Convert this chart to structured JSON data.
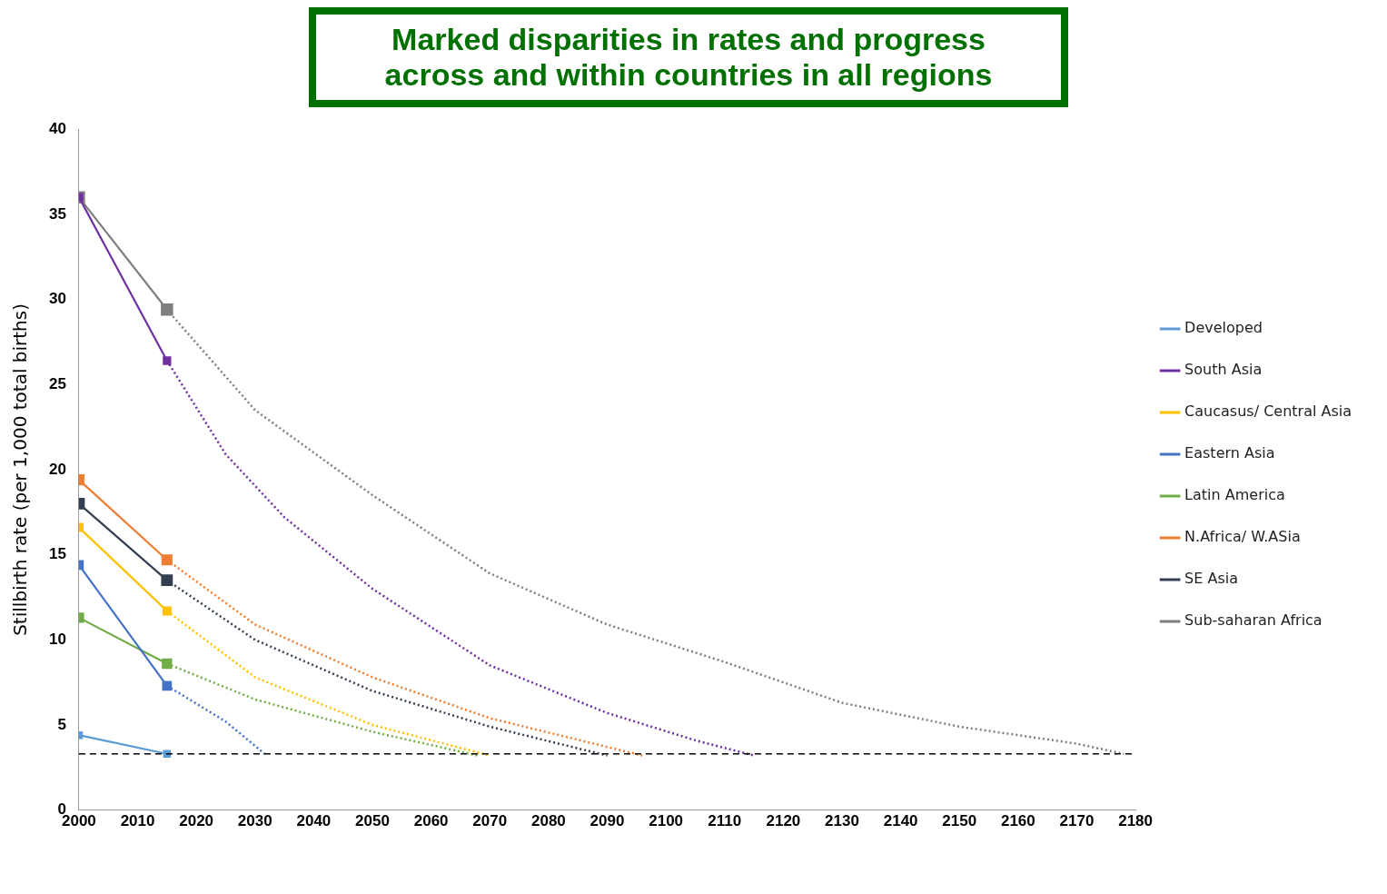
{
  "chart_data": {
    "type": "line",
    "title": "Marked disparities in rates and progress across and within countries in all regions",
    "ylabel": "Stillbirth rate (per 1,000 total births)",
    "xlim": [
      2000,
      2180
    ],
    "xticks": [
      2000,
      2010,
      2020,
      2030,
      2040,
      2050,
      2060,
      2070,
      2080,
      2090,
      2100,
      2110,
      2120,
      2130,
      2140,
      2150,
      2160,
      2170,
      2180
    ],
    "ylim": [
      0,
      40
    ],
    "yticks": [
      0,
      5,
      10,
      15,
      20,
      25,
      30,
      35,
      40
    ],
    "grid": false,
    "legend": "right",
    "marker": "square",
    "line_style": "solid",
    "series": [
      {
        "name": "Developed",
        "color": "#5b9bd5",
        "x": [
          2000,
          2015
        ],
        "values": [
          4.4,
          3.3
        ]
      },
      {
        "name": "South Asia",
        "color": "#7030a0",
        "x": [
          2000,
          2015
        ],
        "values": [
          36,
          26.4
        ]
      },
      {
        "name": "Caucasus/ Central Asia",
        "color": "#ffc000",
        "x": [
          2000,
          2015
        ],
        "values": [
          16.6,
          11.7
        ]
      },
      {
        "name": "Eastern Asia",
        "color": "#4472c4",
        "x": [
          2000,
          2015
        ],
        "values": [
          14.4,
          7.3
        ]
      },
      {
        "name": "Latin America",
        "color": "#70ad47",
        "x": [
          2000,
          2015
        ],
        "values": [
          11.3,
          8.6
        ]
      },
      {
        "name": "N.Africa/ W.ASia",
        "color": "#ed7d31",
        "x": [
          2000,
          2015
        ],
        "values": [
          19.4,
          14.7
        ]
      },
      {
        "name": "SE Asia",
        "color": "#333f50",
        "x": [
          2000,
          2015
        ],
        "values": [
          18,
          13.5
        ]
      },
      {
        "name": "Sub-saharan Africa",
        "color": "#7f7f7f",
        "x": [
          2000,
          2015
        ],
        "values": [
          36,
          29.4
        ]
      },
      {
        "color": "#7030a0",
        "x": [
          2015,
          2025,
          2035,
          2050,
          2070,
          2090,
          2105,
          2115
        ],
        "values": [
          26.4,
          20.9,
          17.2,
          13,
          8.5,
          5.7,
          4.1,
          3.2
        ],
        "line_style": "dotted",
        "marker": "none"
      },
      {
        "color": "#ffc000",
        "x": [
          2015,
          2030,
          2050,
          2070
        ],
        "values": [
          11.7,
          7.8,
          5,
          3.2
        ],
        "line_style": "dotted",
        "marker": "none"
      },
      {
        "color": "#4472c4",
        "x": [
          2015,
          2025,
          2032
        ],
        "values": [
          7.3,
          5.2,
          3.2
        ],
        "line_style": "dotted",
        "marker": "none"
      },
      {
        "color": "#70ad47",
        "x": [
          2015,
          2030,
          2050,
          2068
        ],
        "values": [
          8.6,
          6.5,
          4.6,
          3.2
        ],
        "line_style": "dotted",
        "marker": "none"
      },
      {
        "color": "#ed7d31",
        "x": [
          2015,
          2030,
          2050,
          2070,
          2096
        ],
        "values": [
          14.7,
          10.9,
          7.8,
          5.4,
          3.2
        ],
        "line_style": "dotted",
        "marker": "none"
      },
      {
        "color": "#333f50",
        "x": [
          2015,
          2030,
          2050,
          2070,
          2090
        ],
        "values": [
          13.5,
          10,
          7,
          4.9,
          3.2
        ],
        "line_style": "dotted",
        "marker": "none"
      },
      {
        "color": "#7f7f7f",
        "x": [
          2015,
          2030,
          2050,
          2070,
          2090,
          2110,
          2130,
          2150,
          2170,
          2178
        ],
        "values": [
          29.4,
          23.5,
          18.5,
          13.9,
          10.9,
          8.7,
          6.3,
          4.9,
          3.9,
          3.3
        ],
        "line_style": "dotted",
        "marker": "none"
      }
    ],
    "ref_lines": [
      {
        "axis": "y",
        "value": 3.3,
        "color": "#000000",
        "line_style": "dashed"
      }
    ]
  }
}
